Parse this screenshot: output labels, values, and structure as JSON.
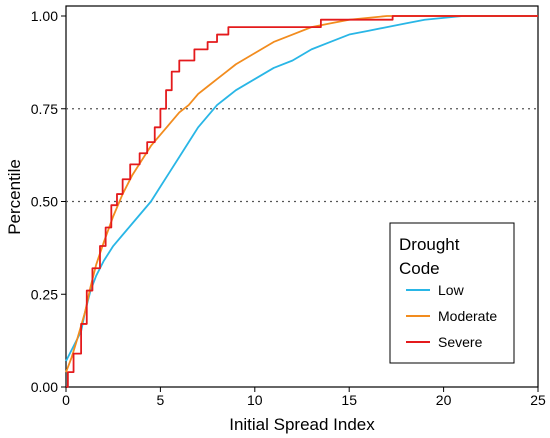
{
  "chart_data": {
    "type": "line",
    "xlabel": "Initial Spread Index",
    "ylabel": "Percentile",
    "xlim": [
      0,
      25
    ],
    "ylim": [
      0,
      1
    ],
    "x_ticks": [
      "0",
      "5",
      "10",
      "15",
      "20",
      "25"
    ],
    "y_ticks": [
      "0.00",
      "0.25",
      "0.50",
      "0.75",
      "1.00"
    ],
    "reference_lines": [
      0.5,
      0.75
    ],
    "legend": {
      "title_line1": "Drought",
      "title_line2": "Code",
      "position": "lower-right"
    },
    "series": [
      {
        "name": "Low",
        "color": "#29b6e6",
        "points": [
          [
            0,
            0.07
          ],
          [
            0.2,
            0.09
          ],
          [
            0.5,
            0.12
          ],
          [
            0.8,
            0.15
          ],
          [
            1.0,
            0.2
          ],
          [
            1.3,
            0.26
          ],
          [
            1.6,
            0.3
          ],
          [
            2.0,
            0.34
          ],
          [
            2.5,
            0.38
          ],
          [
            3.0,
            0.41
          ],
          [
            3.5,
            0.44
          ],
          [
            4.0,
            0.47
          ],
          [
            4.5,
            0.5
          ],
          [
            5.0,
            0.54
          ],
          [
            5.5,
            0.58
          ],
          [
            6.0,
            0.62
          ],
          [
            6.5,
            0.66
          ],
          [
            7.0,
            0.7
          ],
          [
            7.5,
            0.73
          ],
          [
            8.0,
            0.76
          ],
          [
            8.5,
            0.78
          ],
          [
            9.0,
            0.8
          ],
          [
            10.0,
            0.83
          ],
          [
            11.0,
            0.86
          ],
          [
            12.0,
            0.88
          ],
          [
            13.0,
            0.91
          ],
          [
            14.0,
            0.93
          ],
          [
            15.0,
            0.95
          ],
          [
            16.0,
            0.96
          ],
          [
            17.0,
            0.97
          ],
          [
            18.0,
            0.98
          ],
          [
            19.0,
            0.99
          ],
          [
            20.0,
            0.995
          ],
          [
            21.0,
            1.0
          ],
          [
            25.0,
            1.0
          ]
        ]
      },
      {
        "name": "Moderate",
        "color": "#f28c1e",
        "points": [
          [
            0,
            0.04
          ],
          [
            0.3,
            0.08
          ],
          [
            0.6,
            0.13
          ],
          [
            1.0,
            0.2
          ],
          [
            1.3,
            0.27
          ],
          [
            1.6,
            0.33
          ],
          [
            2.0,
            0.39
          ],
          [
            2.5,
            0.46
          ],
          [
            3.0,
            0.52
          ],
          [
            3.5,
            0.57
          ],
          [
            4.0,
            0.61
          ],
          [
            4.5,
            0.65
          ],
          [
            5.0,
            0.68
          ],
          [
            5.5,
            0.71
          ],
          [
            6.0,
            0.74
          ],
          [
            6.5,
            0.76
          ],
          [
            7.0,
            0.79
          ],
          [
            7.5,
            0.81
          ],
          [
            8.0,
            0.83
          ],
          [
            8.5,
            0.85
          ],
          [
            9.0,
            0.87
          ],
          [
            10.0,
            0.9
          ],
          [
            11.0,
            0.93
          ],
          [
            12.0,
            0.95
          ],
          [
            13.0,
            0.97
          ],
          [
            14.0,
            0.98
          ],
          [
            15.0,
            0.99
          ],
          [
            16.0,
            0.995
          ],
          [
            17.0,
            1.0
          ],
          [
            25.0,
            1.0
          ]
        ]
      },
      {
        "name": "Severe",
        "color": "#e41a1c",
        "steps": [
          [
            0,
            0
          ],
          [
            0.1,
            0.04
          ],
          [
            0.4,
            0.09
          ],
          [
            0.8,
            0.17
          ],
          [
            1.1,
            0.26
          ],
          [
            1.4,
            0.32
          ],
          [
            1.8,
            0.38
          ],
          [
            2.1,
            0.43
          ],
          [
            2.4,
            0.49
          ],
          [
            2.7,
            0.52
          ],
          [
            3.0,
            0.56
          ],
          [
            3.4,
            0.6
          ],
          [
            3.9,
            0.63
          ],
          [
            4.3,
            0.66
          ],
          [
            4.7,
            0.7
          ],
          [
            5.0,
            0.75
          ],
          [
            5.3,
            0.8
          ],
          [
            5.6,
            0.85
          ],
          [
            6.0,
            0.88
          ],
          [
            6.8,
            0.91
          ],
          [
            7.5,
            0.93
          ],
          [
            8.0,
            0.95
          ],
          [
            8.6,
            0.97
          ],
          [
            12.0,
            0.97
          ],
          [
            13.0,
            0.97
          ],
          [
            13.5,
            0.99
          ],
          [
            17.0,
            0.99
          ],
          [
            17.3,
            1.0
          ],
          [
            25.0,
            1.0
          ]
        ]
      }
    ]
  }
}
